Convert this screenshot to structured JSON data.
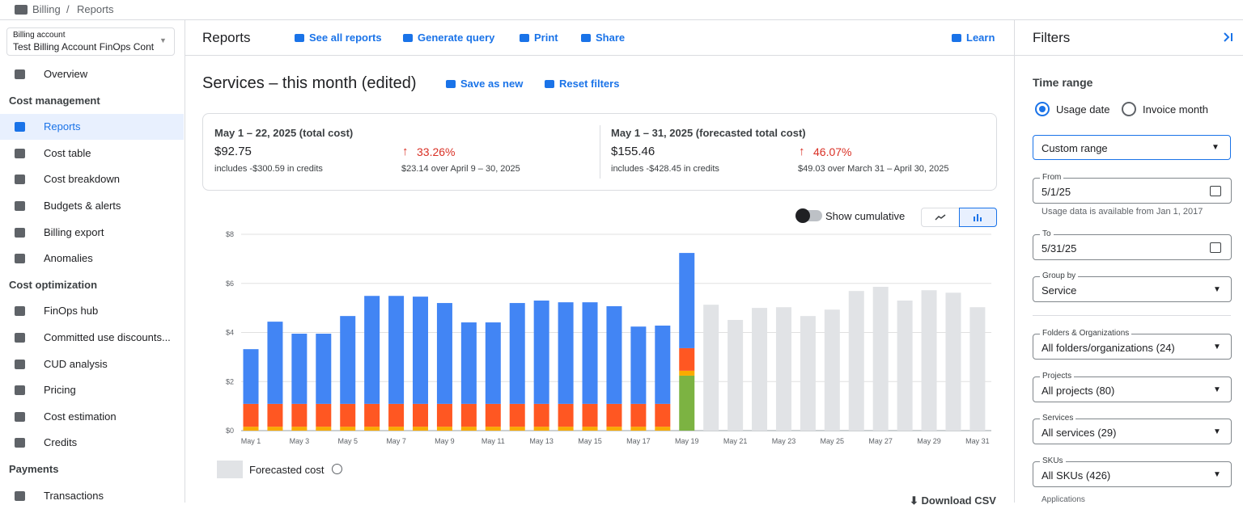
{
  "breadcrumb": [
    "Billing",
    "Reports"
  ],
  "sidebar": {
    "account_label": "Billing account",
    "account_name": "Test Billing Account FinOps Contr",
    "overview": "Overview",
    "sections": [
      {
        "title": "Cost management",
        "items": [
          "Reports",
          "Cost table",
          "Cost breakdown",
          "Budgets & alerts",
          "Billing export",
          "Anomalies"
        ]
      },
      {
        "title": "Cost optimization",
        "items": [
          "FinOps hub",
          "Committed use discounts...",
          "CUD analysis",
          "Pricing",
          "Cost estimation",
          "Credits"
        ]
      },
      {
        "title": "Payments",
        "items": [
          "Transactions"
        ]
      }
    ]
  },
  "toolbar": {
    "title": "Reports",
    "actions": [
      "See all reports",
      "Generate query",
      "Print",
      "Share"
    ],
    "learn": "Learn"
  },
  "report": {
    "title": "Services – this month (edited)",
    "save_as_new": "Save as new",
    "reset_filters": "Reset filters"
  },
  "summary": [
    {
      "period": "May 1 – 22, 2025 (total cost)",
      "amount": "$92.75",
      "credits": "includes -$300.59 in credits",
      "change": "33.26%",
      "change_note": "$23.14 over April 9 – 30, 2025"
    },
    {
      "period": "May 1 – 31, 2025 (forecasted total cost)",
      "amount": "$155.46",
      "credits": "includes -$428.45 in credits",
      "change": "46.07%",
      "change_note": "$49.03 over March 31 – April 30, 2025"
    }
  ],
  "chart_data": {
    "type": "bar",
    "stacked": true,
    "toggle": "Show cumulative",
    "download": "Download CSV",
    "categories": [
      "May 1",
      null,
      "May 3",
      null,
      "May 5",
      null,
      "May 7",
      null,
      "May 9",
      null,
      "May 11",
      null,
      "May 13",
      null,
      "May 15",
      null,
      "May 17",
      null,
      "May 19",
      null,
      "May 21",
      null,
      "May 23",
      null,
      "May 25",
      null,
      "May 27",
      null,
      "May 29",
      null,
      "May 31"
    ],
    "series": [
      {
        "color": "#7cb342",
        "values": [
          null,
          null,
          null,
          null,
          null,
          null,
          null,
          null,
          null,
          null,
          null,
          null,
          null,
          null,
          null,
          null,
          null,
          null,
          2.24,
          null,
          null,
          null,
          null,
          null,
          null,
          null,
          null,
          null,
          null,
          null,
          null
        ]
      },
      {
        "color": "#f9ab00",
        "values": [
          0.16,
          0.16,
          0.16,
          0.16,
          0.16,
          0.16,
          0.16,
          0.16,
          0.16,
          0.16,
          0.16,
          0.16,
          0.16,
          0.16,
          0.16,
          0.16,
          0.16,
          0.16,
          0.2,
          null,
          null,
          null,
          null,
          null,
          null,
          null,
          null,
          null,
          null,
          null,
          null
        ]
      },
      {
        "color": "#ff5722",
        "values": [
          0.93,
          0.93,
          0.93,
          0.93,
          0.93,
          0.93,
          0.93,
          0.93,
          0.93,
          0.93,
          0.93,
          0.93,
          0.93,
          0.93,
          0.93,
          0.93,
          0.93,
          0.93,
          0.92,
          null,
          null,
          null,
          null,
          null,
          null,
          null,
          null,
          null,
          null,
          null,
          null
        ]
      },
      {
        "color": "#4285f4",
        "values": [
          2.23,
          3.35,
          2.86,
          2.86,
          3.58,
          4.4,
          4.4,
          4.37,
          4.11,
          3.32,
          3.32,
          4.11,
          4.21,
          4.14,
          4.14,
          3.98,
          3.15,
          3.19,
          3.88,
          null,
          null,
          null,
          null,
          null,
          null,
          null,
          null,
          null,
          null,
          null,
          null
        ]
      },
      {
        "name": "Forecasted cost",
        "color": "#e1e3e6",
        "values": [
          null,
          null,
          null,
          null,
          null,
          null,
          null,
          null,
          null,
          null,
          null,
          null,
          null,
          null,
          null,
          null,
          null,
          null,
          null,
          5.13,
          4.51,
          5.0,
          5.03,
          4.67,
          4.93,
          5.69,
          5.86,
          5.3,
          5.72,
          5.62,
          5.03
        ]
      }
    ],
    "ylim": [
      0,
      8
    ],
    "yticks": [
      {
        "value": 0,
        "label": "$0"
      },
      {
        "value": 2,
        "label": "$2"
      },
      {
        "value": 4,
        "label": "$4"
      },
      {
        "value": 6,
        "label": "$6"
      },
      {
        "value": 8,
        "label": "$8"
      }
    ],
    "grid": true
  },
  "filters": {
    "title": "Filters",
    "time_range": "Time range",
    "radios": [
      "Usage date",
      "Invoice month"
    ],
    "range": "Custom range",
    "note": "Usage data is available from Jan 1, 2017",
    "fields": [
      {
        "label": "From",
        "value": "5/1/25"
      },
      {
        "label": "To",
        "value": "5/31/25"
      },
      {
        "label": "Group by",
        "value": "Service"
      },
      {
        "label": "Folders & Organizations",
        "value": "All folders/organizations (24)"
      },
      {
        "label": "Projects",
        "value": "All projects (80)"
      },
      {
        "label": "Services",
        "value": "All services (29)"
      },
      {
        "label": "SKUs",
        "value": "All SKUs (426)"
      }
    ],
    "more": "Applications"
  }
}
